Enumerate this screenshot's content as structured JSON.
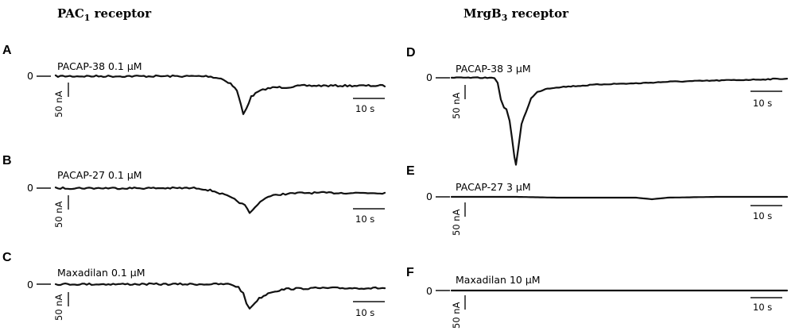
{
  "columns": {
    "left": {
      "title": "PAC",
      "sub": "1",
      "suffix": " receptor"
    },
    "right": {
      "title": "MrgB",
      "sub": "3",
      "suffix": " receptor"
    }
  },
  "panels": [
    {
      "letter": "A",
      "condition": "PACAP-38 0.1 µM",
      "zero": "0",
      "current_scale": "50 nA",
      "time_scale": "10 s"
    },
    {
      "letter": "B",
      "condition": "PACAP-27 0.1 µM",
      "zero": "0",
      "current_scale": "50 nA",
      "time_scale": "10 s"
    },
    {
      "letter": "C",
      "condition": "Maxadilan 0.1 µM",
      "zero": "0",
      "current_scale": "50 nA",
      "time_scale": "10 s"
    },
    {
      "letter": "D",
      "condition": "PACAP-38 3 µM",
      "zero": "0",
      "current_scale": "50 nA",
      "time_scale": "10 s"
    },
    {
      "letter": "E",
      "condition": "PACAP-27 3 µM",
      "zero": "0",
      "current_scale": "50 nA",
      "time_scale": "10 s"
    },
    {
      "letter": "F",
      "condition": "Maxadilan 10 µM",
      "zero": "0",
      "current_scale": "50 nA",
      "time_scale": "10 s"
    }
  ]
}
